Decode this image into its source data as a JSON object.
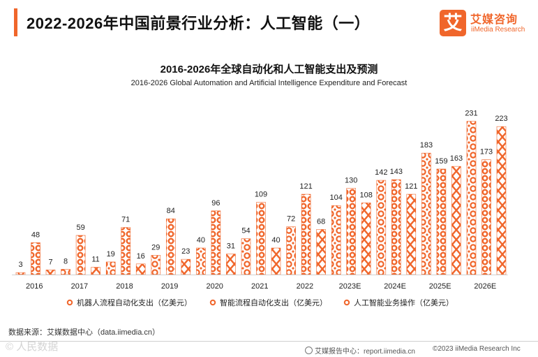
{
  "header": {
    "title": "2022-2026年中国前景行业分析：人工智能（一）"
  },
  "brand": {
    "logo_char": "艾",
    "name_cn": "艾媒咨询",
    "name_en": "iiMedia Research"
  },
  "chart_data": {
    "type": "bar",
    "title": "2016-2026年全球自动化和人工智能支出及预测",
    "subtitle": "2016-2026 Global Automation and Artificial Intelligence Expenditure and Forecast",
    "categories": [
      "2016",
      "2017",
      "2018",
      "2019",
      "2020",
      "2021",
      "2022",
      "2023E",
      "2024E",
      "2025E",
      "2026E"
    ],
    "series": [
      {
        "name": "机器人流程自动化支出（亿美元）",
        "values": [
          3,
          8,
          19,
          29,
          40,
          54,
          72,
          104,
          142,
          183,
          231
        ]
      },
      {
        "name": "智能流程自动化支出（亿美元）",
        "values": [
          48,
          59,
          71,
          84,
          96,
          109,
          121,
          130,
          143,
          159,
          173
        ]
      },
      {
        "name": "人工智能业务操作（亿美元）",
        "values": [
          7,
          11,
          16,
          23,
          31,
          40,
          68,
          108,
          121,
          163,
          223
        ]
      }
    ],
    "ylim": [
      0,
      240
    ],
    "xlabel": "",
    "ylabel": "",
    "legend_position": "bottom",
    "bar_color": "#f0662b"
  },
  "footer": {
    "source": "数据来源：艾媒数据中心（data.iimedia.cn）",
    "report": "艾媒报告中心：report.iimedia.cn",
    "copyright": "©2023  iiMedia Research  Inc",
    "watermark": "©  人民数据"
  }
}
